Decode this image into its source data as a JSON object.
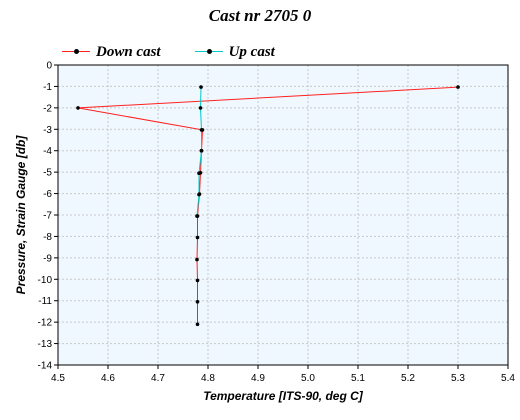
{
  "chart_data": {
    "type": "line",
    "title": "Cast nr 2705 0",
    "xlabel": "Temperature [ITS-90, deg C]",
    "ylabel": "Pressure, Strain Gauge [db]",
    "xlim": [
      4.5,
      5.4
    ],
    "ylim": [
      -14,
      0
    ],
    "xticks": [
      "4.5",
      "4.6",
      "4.7",
      "4.8",
      "4.9",
      "5.0",
      "5.1",
      "5.2",
      "5.3",
      "5.4"
    ],
    "yticks": [
      "0",
      "-1",
      "-2",
      "-3",
      "-4",
      "-5",
      "-6",
      "-7",
      "-8",
      "-9",
      "-10",
      "-11",
      "-12",
      "-13",
      "-14"
    ],
    "grid": true,
    "legend_position": "top-left",
    "series": [
      {
        "name": "Down cast",
        "color": "#ff2020",
        "points": [
          {
            "x": 5.3,
            "y": -1.03
          },
          {
            "x": 4.54,
            "y": -2.0
          },
          {
            "x": 4.789,
            "y": -3.03
          },
          {
            "x": 4.787,
            "y": -4.0
          },
          {
            "x": 4.785,
            "y": -5.03
          },
          {
            "x": 4.783,
            "y": -6.02
          },
          {
            "x": 4.779,
            "y": -7.05
          },
          {
            "x": 4.779,
            "y": -8.05
          },
          {
            "x": 4.778,
            "y": -9.08
          },
          {
            "x": 4.779,
            "y": -10.05
          },
          {
            "x": 4.779,
            "y": -11.05
          },
          {
            "x": 4.779,
            "y": -12.1
          }
        ]
      },
      {
        "name": "Up cast",
        "color": "#00c8c8",
        "points": [
          {
            "x": 4.786,
            "y": -1.03
          },
          {
            "x": 4.785,
            "y": -2.0
          },
          {
            "x": 4.787,
            "y": -3.03
          },
          {
            "x": 4.787,
            "y": -4.0
          },
          {
            "x": 4.782,
            "y": -5.05
          },
          {
            "x": 4.782,
            "y": -6.05
          },
          {
            "x": 4.778,
            "y": -7.05
          }
        ]
      }
    ]
  }
}
